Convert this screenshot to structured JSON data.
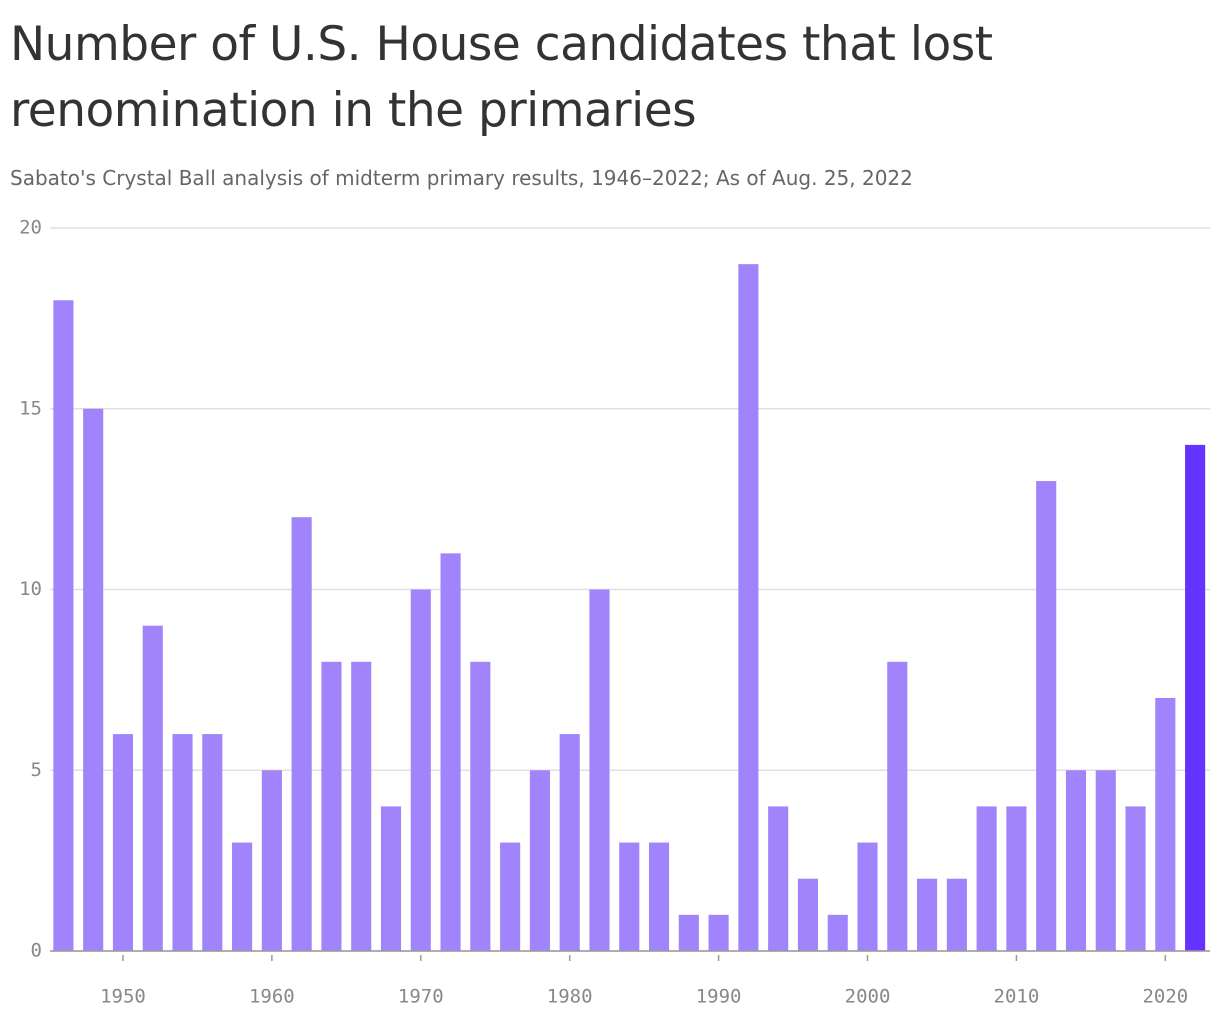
{
  "chart_data": {
    "type": "bar",
    "title": "Number of U.S. House candidates that lost renomination in the primaries",
    "subtitle": "Sabato's Crystal Ball analysis of midterm primary results, 1946–2022; As of Aug. 25, 2022",
    "x": [
      1946,
      1948,
      1950,
      1952,
      1954,
      1956,
      1958,
      1960,
      1962,
      1964,
      1966,
      1968,
      1970,
      1972,
      1974,
      1976,
      1978,
      1980,
      1982,
      1984,
      1986,
      1988,
      1990,
      1992,
      1994,
      1996,
      1998,
      2000,
      2002,
      2004,
      2006,
      2008,
      2010,
      2012,
      2014,
      2016,
      2018,
      2020,
      2022
    ],
    "values": [
      18,
      15,
      6,
      9,
      6,
      6,
      3,
      5,
      12,
      8,
      8,
      4,
      10,
      11,
      8,
      3,
      5,
      6,
      10,
      3,
      3,
      1,
      1,
      19,
      4,
      2,
      1,
      3,
      8,
      2,
      2,
      4,
      4,
      13,
      5,
      5,
      4,
      7,
      14
    ],
    "colors": [
      "#a183fb",
      "#a183fb",
      "#a183fb",
      "#a183fb",
      "#a183fb",
      "#a183fb",
      "#a183fb",
      "#a183fb",
      "#a183fb",
      "#a183fb",
      "#a183fb",
      "#a183fb",
      "#a183fb",
      "#a183fb",
      "#a183fb",
      "#a183fb",
      "#a183fb",
      "#a183fb",
      "#a183fb",
      "#a183fb",
      "#a183fb",
      "#a183fb",
      "#a183fb",
      "#a183fb",
      "#a183fb",
      "#a183fb",
      "#a183fb",
      "#a183fb",
      "#a183fb",
      "#a183fb",
      "#a183fb",
      "#a183fb",
      "#a183fb",
      "#a183fb",
      "#a183fb",
      "#a183fb",
      "#a183fb",
      "#a183fb",
      "#6533ff"
    ],
    "xlim": [
      1945.1,
      2023
    ],
    "xticks": [
      1950,
      1960,
      1970,
      1980,
      1990,
      2000,
      2010,
      2020
    ],
    "ylim": [
      0,
      20
    ],
    "yticks": [
      0,
      5,
      10,
      15,
      20
    ],
    "grid": true
  }
}
